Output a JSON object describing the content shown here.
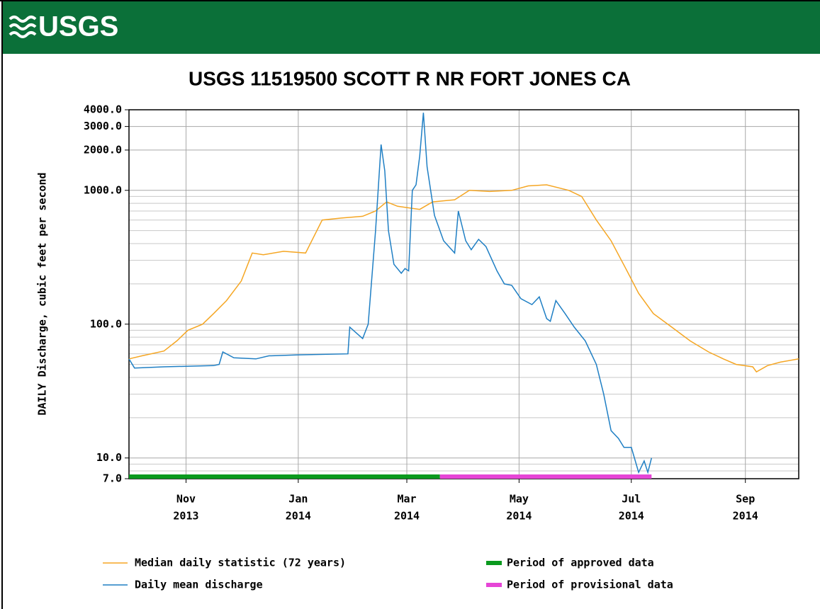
{
  "header": {
    "logo": "USGS"
  },
  "chart_data": {
    "type": "line",
    "title": "USGS 11519500 SCOTT R NR FORT JONES CA",
    "ylabel": "DAILY Discharge, cubic feet per second",
    "log_scale": true,
    "grid": true,
    "xlim": [
      "2013-10-01",
      "2014-09-30"
    ],
    "xticks": [
      {
        "value": "2013-11-01",
        "label": [
          "Nov",
          "2013"
        ]
      },
      {
        "value": "2014-01-01",
        "label": [
          "Jan",
          "2014"
        ]
      },
      {
        "value": "2014-03-01",
        "label": [
          "Mar",
          "2014"
        ]
      },
      {
        "value": "2014-05-01",
        "label": [
          "May",
          "2014"
        ]
      },
      {
        "value": "2014-07-01",
        "label": [
          "Jul",
          "2014"
        ]
      },
      {
        "value": "2014-09-01",
        "label": [
          "Sep",
          "2014"
        ]
      }
    ],
    "ylim": [
      7,
      4000
    ],
    "yticks": [
      {
        "value": 4000,
        "label": "4000.0"
      },
      {
        "value": 3000,
        "label": "3000.0"
      },
      {
        "value": 2000,
        "label": "2000.0"
      },
      {
        "value": 1000,
        "label": "1000.0"
      },
      {
        "value": 100,
        "label": "100.0"
      },
      {
        "value": 10,
        "label": "10.0"
      },
      {
        "value": 7,
        "label": "7.0"
      }
    ],
    "yminor": [
      8,
      9,
      20,
      30,
      40,
      50,
      60,
      70,
      80,
      90,
      200,
      300,
      400,
      500,
      600,
      700,
      800,
      900
    ],
    "series": [
      {
        "name": "Median daily statistic (72 years)",
        "color": "#f5a623",
        "x": [
          "2013-10-01",
          "2013-10-08",
          "2013-10-20",
          "2013-10-27",
          "2013-11-02",
          "2013-11-10",
          "2013-11-16",
          "2013-11-23",
          "2013-12-01",
          "2013-12-07",
          "2013-12-13",
          "2013-12-24",
          "2014-01-05",
          "2014-01-14",
          "2014-01-24",
          "2014-02-05",
          "2014-02-12",
          "2014-02-18",
          "2014-02-24",
          "2014-03-08",
          "2014-03-15",
          "2014-03-27",
          "2014-04-04",
          "2014-04-15",
          "2014-04-27",
          "2014-05-06",
          "2014-05-16",
          "2014-05-28",
          "2014-06-04",
          "2014-06-12",
          "2014-06-20",
          "2014-06-28",
          "2014-07-05",
          "2014-07-13",
          "2014-07-23",
          "2014-08-02",
          "2014-08-12",
          "2014-08-20",
          "2014-08-27",
          "2014-09-05",
          "2014-09-07",
          "2014-09-13",
          "2014-09-20",
          "2014-09-30"
        ],
        "values": [
          55,
          58,
          63,
          75,
          90,
          100,
          120,
          150,
          210,
          340,
          330,
          350,
          340,
          600,
          620,
          640,
          700,
          820,
          760,
          720,
          820,
          850,
          1000,
          980,
          1000,
          1080,
          1100,
          1000,
          900,
          600,
          420,
          260,
          170,
          120,
          95,
          75,
          62,
          55,
          50,
          48,
          44,
          49,
          52,
          55
        ]
      },
      {
        "name": "Daily mean discharge",
        "color": "#1f7fc4",
        "x": [
          "2013-10-01",
          "2013-10-04",
          "2013-10-20",
          "2013-11-16",
          "2013-11-19",
          "2013-11-21",
          "2013-11-27",
          "2013-12-09",
          "2013-12-16",
          "2014-01-01",
          "2014-01-28",
          "2014-01-29",
          "2014-02-05",
          "2014-02-08",
          "2014-02-12",
          "2014-02-15",
          "2014-02-17",
          "2014-02-19",
          "2014-02-22",
          "2014-02-26",
          "2014-02-28",
          "2014-03-02",
          "2014-03-04",
          "2014-03-06",
          "2014-03-08",
          "2014-03-10",
          "2014-03-12",
          "2014-03-16",
          "2014-03-21",
          "2014-03-27",
          "2014-03-29",
          "2014-04-02",
          "2014-04-05",
          "2014-04-09",
          "2014-04-13",
          "2014-04-19",
          "2014-04-23",
          "2014-04-27",
          "2014-05-02",
          "2014-05-08",
          "2014-05-12",
          "2014-05-16",
          "2014-05-18",
          "2014-05-21",
          "2014-05-26",
          "2014-05-31",
          "2014-06-06",
          "2014-06-12",
          "2014-06-16",
          "2014-06-20",
          "2014-06-24",
          "2014-06-27",
          "2014-07-01",
          "2014-07-05",
          "2014-07-08",
          "2014-07-10",
          "2014-07-12"
        ],
        "values": [
          55,
          47,
          48,
          49,
          50,
          62,
          56,
          55,
          58,
          59,
          60,
          95,
          78,
          100,
          500,
          2200,
          1400,
          500,
          280,
          240,
          260,
          250,
          1000,
          1100,
          1800,
          3800,
          1500,
          650,
          420,
          340,
          700,
          420,
          360,
          430,
          380,
          250,
          200,
          195,
          155,
          140,
          160,
          110,
          105,
          150,
          120,
          95,
          75,
          50,
          30,
          16,
          14,
          12,
          12,
          7.8,
          9.5,
          7.8,
          10
        ]
      }
    ],
    "periods": [
      {
        "name": "Period of approved data",
        "color": "#0a9a1e",
        "start": "2013-10-01",
        "end": "2014-03-19"
      },
      {
        "name": "Period of provisional data",
        "color": "#e645d6",
        "start": "2014-03-19",
        "end": "2014-07-12"
      }
    ]
  }
}
